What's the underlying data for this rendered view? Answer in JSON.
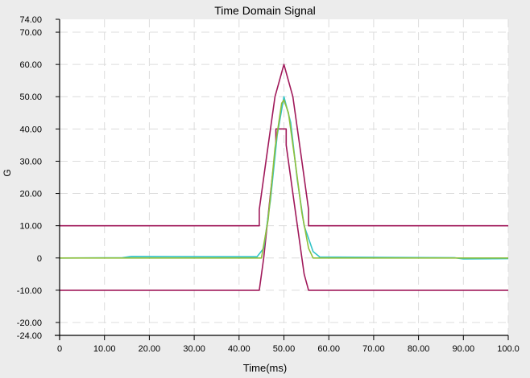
{
  "chart_data": {
    "type": "line",
    "title": "Time Domain Signal",
    "xlabel": "Time(ms)",
    "ylabel": "G",
    "xlim": [
      0,
      100
    ],
    "ylim": [
      -24,
      74
    ],
    "grid": true,
    "xticks": [
      0,
      10,
      20,
      30,
      40,
      50,
      60,
      70,
      80,
      90,
      100
    ],
    "xtick_labels": [
      "0",
      "10.00",
      "20.00",
      "30.00",
      "40.00",
      "50.00",
      "60.00",
      "70.00",
      "80.00",
      "90.00",
      "100.0"
    ],
    "yticks": [
      74,
      70,
      60,
      50,
      40,
      30,
      20,
      10,
      0,
      -10,
      -20,
      -24
    ],
    "ytick_labels": [
      "74.00",
      "70.00",
      "60.00",
      "50.00",
      "40.00",
      "30.00",
      "20.00",
      "10.00",
      "0",
      "-10.00",
      "-20.00",
      "-24.00"
    ],
    "series": [
      {
        "color": "#a0195a",
        "points": [
          [
            0,
            10
          ],
          [
            44.5,
            10
          ],
          [
            44.5,
            15
          ],
          [
            46,
            30
          ],
          [
            48,
            50
          ],
          [
            50,
            60
          ],
          [
            52,
            50
          ],
          [
            54,
            30
          ],
          [
            55.5,
            15
          ],
          [
            55.5,
            10
          ],
          [
            100,
            10
          ]
        ]
      },
      {
        "color": "#a0195a",
        "points": [
          [
            0,
            -10
          ],
          [
            44.5,
            -10
          ],
          [
            45.5,
            0
          ],
          [
            47,
            20
          ],
          [
            48.2,
            35
          ],
          [
            48.2,
            40
          ],
          [
            50.5,
            40
          ],
          [
            50.5,
            35
          ],
          [
            52.5,
            15
          ],
          [
            54.5,
            -5
          ],
          [
            55.5,
            -10
          ],
          [
            100,
            -10
          ]
        ]
      },
      {
        "color": "#33c4c8",
        "points": [
          [
            0,
            0
          ],
          [
            14,
            0.1
          ],
          [
            16,
            0.5
          ],
          [
            44,
            0.4
          ],
          [
            45.5,
            3
          ],
          [
            47,
            18
          ],
          [
            48.5,
            38
          ],
          [
            50,
            50
          ],
          [
            51.5,
            42
          ],
          [
            53,
            24
          ],
          [
            54.5,
            10
          ],
          [
            56.5,
            2
          ],
          [
            58,
            0.3
          ],
          [
            88,
            0.1
          ],
          [
            90,
            -0.3
          ],
          [
            100,
            -0.2
          ]
        ]
      },
      {
        "color": "#8fbf3a",
        "points": [
          [
            0,
            0
          ],
          [
            45,
            0
          ],
          [
            46.5,
            12
          ],
          [
            48,
            34
          ],
          [
            49.5,
            48
          ],
          [
            50,
            49
          ],
          [
            51,
            45
          ],
          [
            52.5,
            30
          ],
          [
            54,
            14
          ],
          [
            55.5,
            3
          ],
          [
            56.5,
            0
          ],
          [
            100,
            0
          ]
        ]
      }
    ]
  }
}
